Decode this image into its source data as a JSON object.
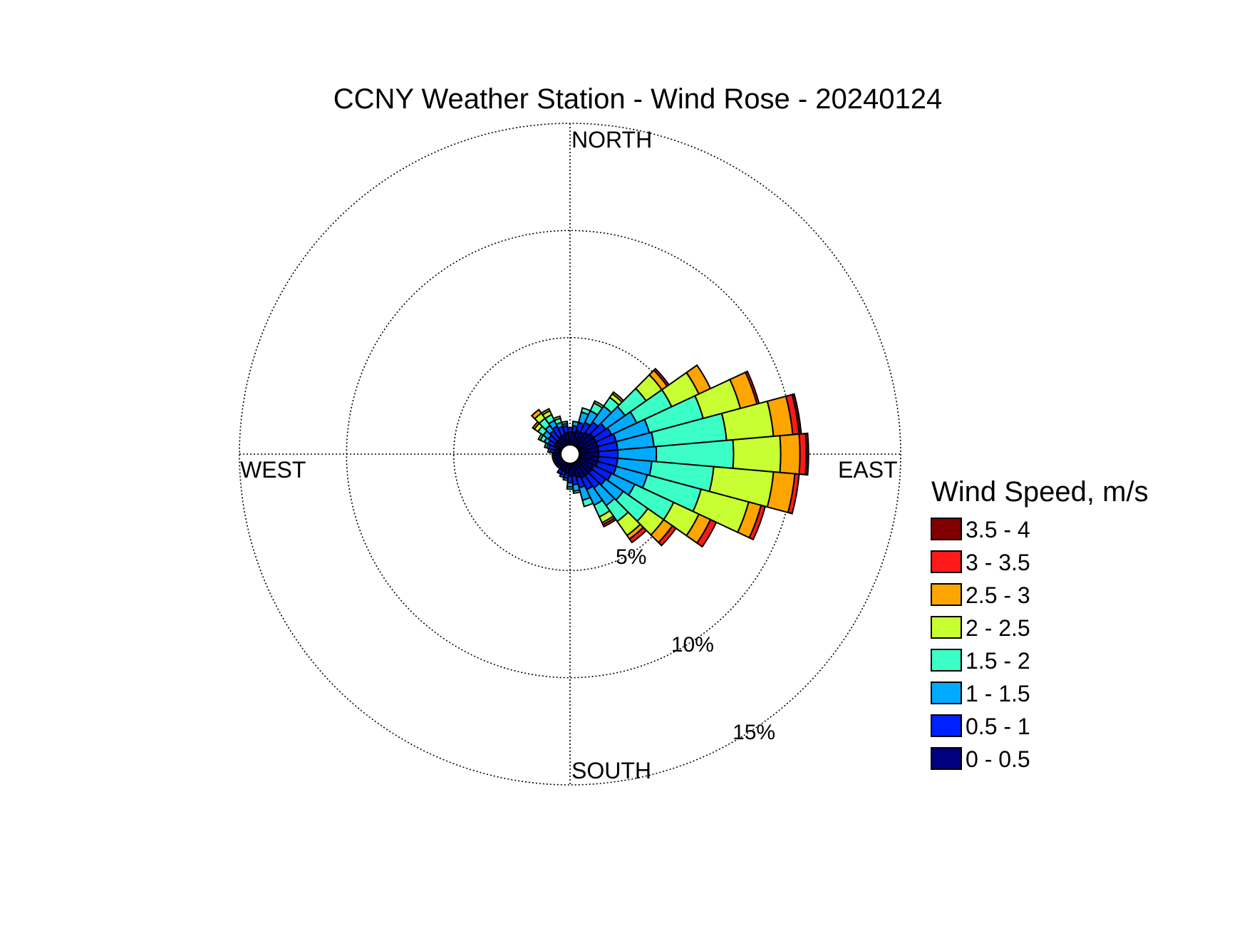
{
  "chart_data": {
    "type": "wind_rose",
    "title": "CCNY Weather Station - Wind Rose - 20240124",
    "directions": {
      "north": "NORTH",
      "east": "EAST",
      "south": "SOUTH",
      "west": "WEST"
    },
    "rings": [
      {
        "value": 5,
        "label": "5%"
      },
      {
        "value": 10,
        "label": "10%"
      },
      {
        "value": 15,
        "label": "15%"
      }
    ],
    "rmax": 15,
    "legend": {
      "title": "Wind Speed, m/s",
      "bins": [
        {
          "label": "3.5 - 4",
          "color": "#800000"
        },
        {
          "label": "3 - 3.5",
          "color": "#ff1a1a"
        },
        {
          "label": "2.5 - 3",
          "color": "#ffa500"
        },
        {
          "label": "2 - 2.5",
          "color": "#c8ff32"
        },
        {
          "label": "1.5 - 2",
          "color": "#3cffc8"
        },
        {
          "label": "1 - 1.5",
          "color": "#00aaff"
        },
        {
          "label": "0.5 - 1",
          "color": "#0020ff"
        },
        {
          "label": "0 - 0.5",
          "color": "#000080"
        }
      ]
    },
    "speed_bins": [
      "0 - 0.5",
      "0.5 - 1",
      "1 - 1.5",
      "1.5 - 2",
      "2 - 2.5",
      "2.5 - 3",
      "3 - 3.5",
      "3.5 - 4"
    ],
    "sector_width_deg": 10,
    "sectors": [
      {
        "direction_deg": 0,
        "values": [
          0.6,
          0.2,
          0.0,
          0.0,
          0.0,
          0.0,
          0.0,
          0.0
        ]
      },
      {
        "direction_deg": 10,
        "values": [
          0.6,
          0.3,
          0.2,
          0.0,
          0.0,
          0.0,
          0.0,
          0.0
        ]
      },
      {
        "direction_deg": 20,
        "values": [
          0.7,
          0.4,
          0.5,
          0.2,
          0.0,
          0.0,
          0.0,
          0.0
        ]
      },
      {
        "direction_deg": 30,
        "values": [
          0.7,
          0.5,
          0.6,
          0.4,
          0.1,
          0.0,
          0.0,
          0.0
        ]
      },
      {
        "direction_deg": 40,
        "values": [
          0.8,
          0.6,
          0.9,
          0.5,
          0.2,
          0.1,
          0.0,
          0.0
        ]
      },
      {
        "direction_deg": 50,
        "values": [
          0.9,
          0.7,
          1.1,
          1.2,
          0.9,
          0.3,
          0.1,
          0.0
        ]
      },
      {
        "direction_deg": 60,
        "values": [
          0.9,
          0.8,
          1.3,
          1.8,
          1.4,
          0.6,
          0.0,
          0.0
        ]
      },
      {
        "direction_deg": 70,
        "values": [
          0.9,
          0.9,
          1.6,
          2.6,
          1.8,
          0.8,
          0.1,
          0.0
        ]
      },
      {
        "direction_deg": 80,
        "values": [
          0.9,
          0.9,
          1.7,
          3.4,
          2.2,
          0.9,
          0.3,
          0.1
        ]
      },
      {
        "direction_deg": 90,
        "values": [
          0.9,
          0.9,
          1.8,
          3.6,
          2.2,
          0.9,
          0.3,
          0.1
        ]
      },
      {
        "direction_deg": 100,
        "values": [
          0.9,
          0.9,
          1.6,
          2.9,
          2.8,
          1.0,
          0.2,
          0.0
        ]
      },
      {
        "direction_deg": 110,
        "values": [
          0.9,
          0.9,
          1.5,
          2.6,
          2.3,
          0.6,
          0.2,
          0.0
        ]
      },
      {
        "direction_deg": 120,
        "values": [
          0.8,
          0.9,
          1.2,
          2.0,
          1.3,
          0.6,
          0.3,
          0.0
        ]
      },
      {
        "direction_deg": 130,
        "values": [
          0.8,
          0.8,
          1.0,
          1.4,
          0.9,
          0.5,
          0.2,
          0.0
        ]
      },
      {
        "direction_deg": 140,
        "values": [
          0.8,
          0.7,
          1.0,
          0.9,
          0.8,
          0.2,
          0.2,
          0.0
        ]
      },
      {
        "direction_deg": 150,
        "values": [
          0.8,
          0.6,
          0.8,
          0.6,
          0.3,
          0.1,
          0.1,
          0.0
        ]
      },
      {
        "direction_deg": 160,
        "values": [
          0.7,
          0.5,
          0.6,
          0.3,
          0.0,
          0.0,
          0.0,
          0.0
        ]
      },
      {
        "direction_deg": 170,
        "values": [
          0.6,
          0.4,
          0.3,
          0.1,
          0.0,
          0.0,
          0.0,
          0.0
        ]
      },
      {
        "direction_deg": 180,
        "values": [
          0.6,
          0.3,
          0.2,
          0.1,
          0.0,
          0.0,
          0.0,
          0.0
        ]
      },
      {
        "direction_deg": 190,
        "values": [
          0.5,
          0.2,
          0.1,
          0.0,
          0.0,
          0.0,
          0.0,
          0.0
        ]
      },
      {
        "direction_deg": 200,
        "values": [
          0.4,
          0.2,
          0.1,
          0.0,
          0.0,
          0.0,
          0.0,
          0.0
        ]
      },
      {
        "direction_deg": 210,
        "values": [
          0.4,
          0.2,
          0.0,
          0.0,
          0.0,
          0.0,
          0.0,
          0.0
        ]
      },
      {
        "direction_deg": 220,
        "values": [
          0.3,
          0.1,
          0.0,
          0.0,
          0.0,
          0.0,
          0.0,
          0.0
        ]
      },
      {
        "direction_deg": 230,
        "values": [
          0.3,
          0.1,
          0.0,
          0.0,
          0.0,
          0.0,
          0.0,
          0.0
        ]
      },
      {
        "direction_deg": 240,
        "values": [
          0.3,
          0.1,
          0.0,
          0.0,
          0.0,
          0.0,
          0.0,
          0.0
        ]
      },
      {
        "direction_deg": 250,
        "values": [
          0.3,
          0.1,
          0.0,
          0.0,
          0.0,
          0.0,
          0.0,
          0.0
        ]
      },
      {
        "direction_deg": 260,
        "values": [
          0.3,
          0.1,
          0.0,
          0.0,
          0.0,
          0.0,
          0.0,
          0.0
        ]
      },
      {
        "direction_deg": 270,
        "values": [
          0.3,
          0.1,
          0.0,
          0.0,
          0.0,
          0.0,
          0.0,
          0.0
        ]
      },
      {
        "direction_deg": 280,
        "values": [
          0.3,
          0.2,
          0.1,
          0.0,
          0.0,
          0.0,
          0.0,
          0.0
        ]
      },
      {
        "direction_deg": 290,
        "values": [
          0.3,
          0.3,
          0.1,
          0.1,
          0.0,
          0.0,
          0.0,
          0.0
        ]
      },
      {
        "direction_deg": 300,
        "values": [
          0.4,
          0.3,
          0.2,
          0.2,
          0.1,
          0.0,
          0.0,
          0.0
        ]
      },
      {
        "direction_deg": 310,
        "values": [
          0.4,
          0.4,
          0.3,
          0.3,
          0.2,
          0.1,
          0.0,
          0.0
        ]
      },
      {
        "direction_deg": 320,
        "values": [
          0.4,
          0.5,
          0.3,
          0.4,
          0.3,
          0.2,
          0.0,
          0.0
        ]
      },
      {
        "direction_deg": 330,
        "values": [
          0.5,
          0.5,
          0.3,
          0.3,
          0.2,
          0.1,
          0.0,
          0.0
        ]
      },
      {
        "direction_deg": 340,
        "values": [
          0.5,
          0.4,
          0.2,
          0.2,
          0.1,
          0.0,
          0.0,
          0.0
        ]
      },
      {
        "direction_deg": 350,
        "values": [
          0.6,
          0.3,
          0.1,
          0.1,
          0.0,
          0.0,
          0.0,
          0.0
        ]
      }
    ]
  }
}
